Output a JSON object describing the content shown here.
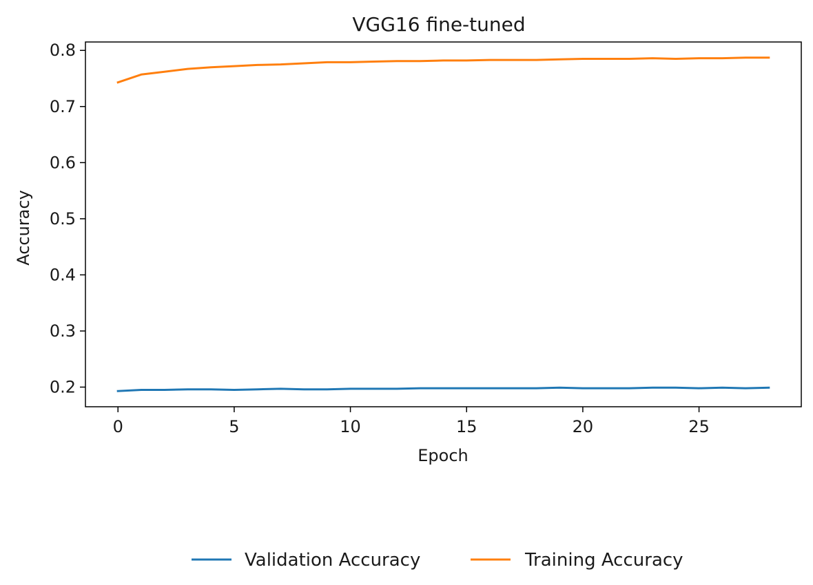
{
  "chart_data": {
    "type": "line",
    "title": "VGG16 fine-tuned",
    "xlabel": "Epoch",
    "ylabel": "Accuracy",
    "xlim": [
      -1.4,
      29.4
    ],
    "ylim": [
      0.165,
      0.815
    ],
    "xticks": [
      0,
      5,
      10,
      15,
      20,
      25
    ],
    "xtick_labels": [
      "0",
      "5",
      "10",
      "15",
      "20",
      "25"
    ],
    "yticks": [
      0.2,
      0.3,
      0.4,
      0.5,
      0.6,
      0.7,
      0.8
    ],
    "ytick_labels": [
      "0.2",
      "0.3",
      "0.4",
      "0.5",
      "0.6",
      "0.7",
      "0.8"
    ],
    "grid": false,
    "legend_placement": "bottom-center, below axes",
    "x": [
      0,
      1,
      2,
      3,
      4,
      5,
      6,
      7,
      8,
      9,
      10,
      11,
      12,
      13,
      14,
      15,
      16,
      17,
      18,
      19,
      20,
      21,
      22,
      23,
      24,
      25,
      26,
      27,
      28
    ],
    "series": [
      {
        "name": "Validation Accuracy",
        "color": "#1f77b4",
        "values": [
          0.193,
          0.195,
          0.195,
          0.196,
          0.196,
          0.195,
          0.196,
          0.197,
          0.196,
          0.196,
          0.197,
          0.197,
          0.197,
          0.198,
          0.198,
          0.198,
          0.198,
          0.198,
          0.198,
          0.199,
          0.198,
          0.198,
          0.198,
          0.199,
          0.199,
          0.198,
          0.199,
          0.198,
          0.199
        ]
      },
      {
        "name": "Training Accuracy",
        "color": "#ff7f0e",
        "values": [
          0.743,
          0.757,
          0.762,
          0.767,
          0.77,
          0.772,
          0.774,
          0.775,
          0.777,
          0.779,
          0.779,
          0.78,
          0.781,
          0.781,
          0.782,
          0.782,
          0.783,
          0.783,
          0.783,
          0.784,
          0.785,
          0.785,
          0.785,
          0.786,
          0.785,
          0.786,
          0.786,
          0.787,
          0.787
        ]
      }
    ]
  }
}
